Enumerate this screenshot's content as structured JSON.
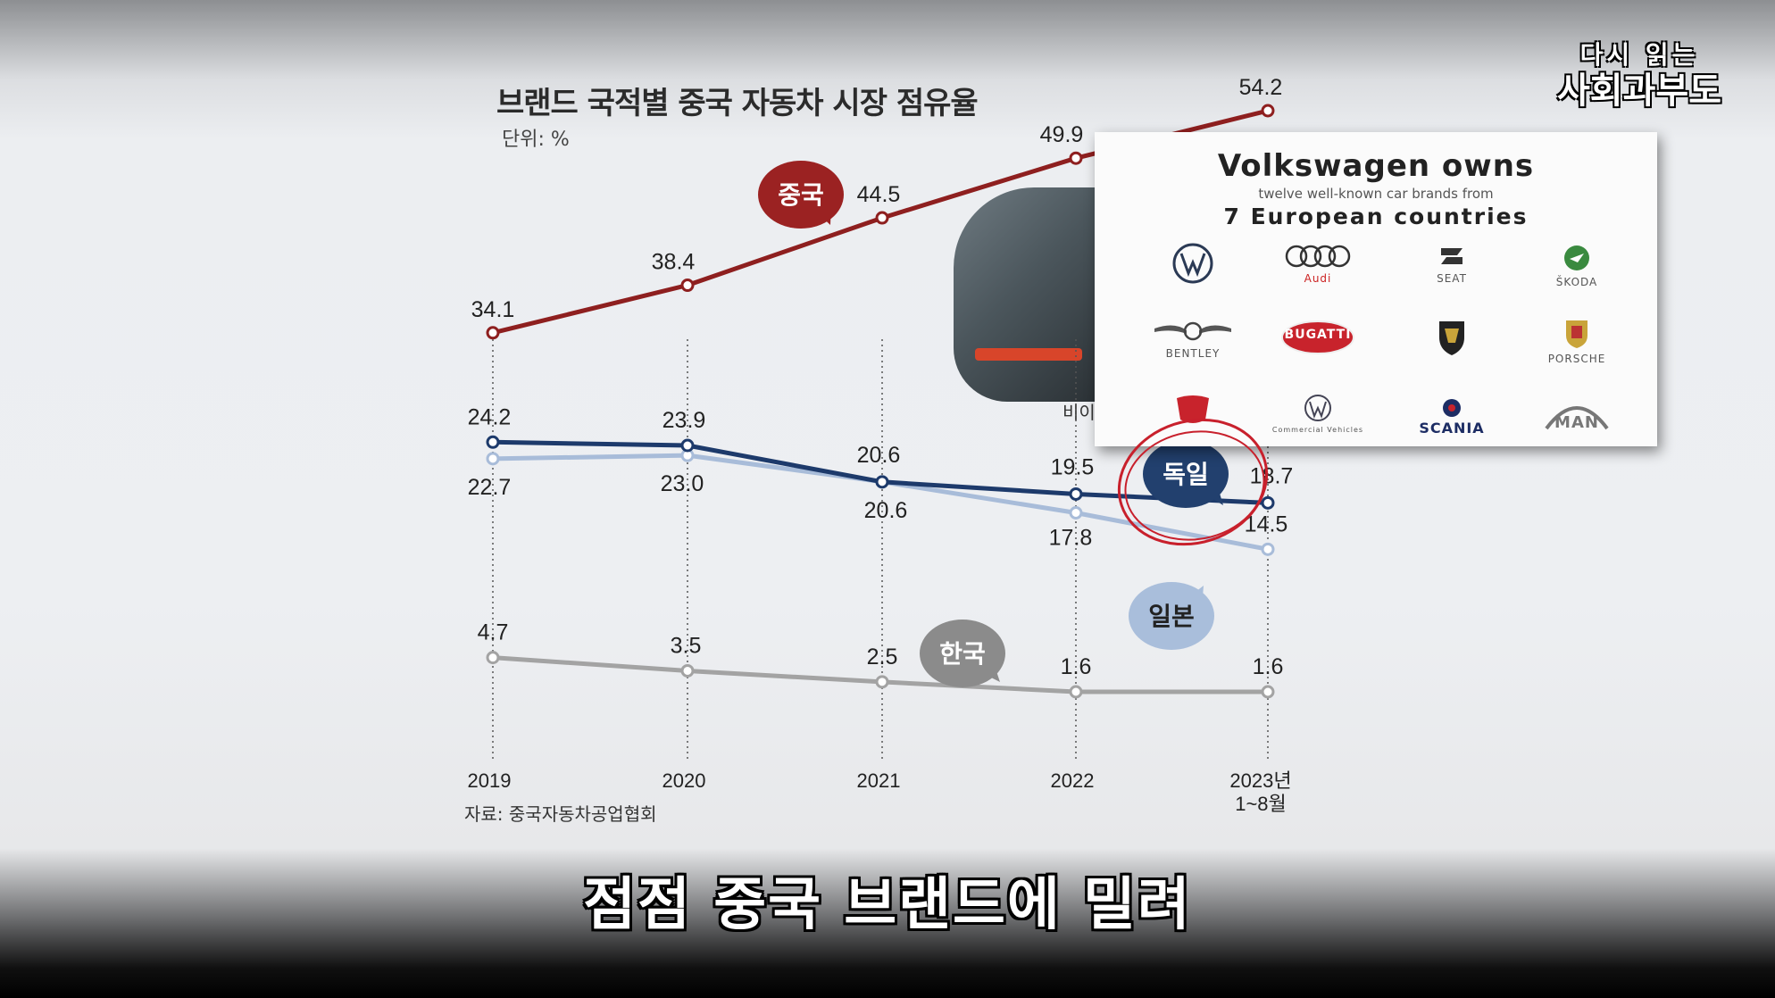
{
  "chart_data": {
    "type": "line",
    "title": "브랜드 국적별 중국 자동차 시장 점유율",
    "unit": "단위: %",
    "source": "자료: 중국자동차공업협회",
    "categories": [
      "2019",
      "2020",
      "2021",
      "2022",
      "2023년 1~8월"
    ],
    "series": [
      {
        "name": "중국",
        "values": [
          34.1,
          38.4,
          44.5,
          49.9,
          54.2
        ],
        "color": "#8e1f1f"
      },
      {
        "name": "독일",
        "values": [
          24.2,
          23.9,
          20.6,
          19.5,
          18.7
        ],
        "color": "#1d3a6b"
      },
      {
        "name": "일본",
        "values": [
          22.7,
          23.0,
          20.6,
          17.8,
          14.5
        ],
        "color": "#a8bcd9"
      },
      {
        "name": "한국",
        "values": [
          4.7,
          3.5,
          2.5,
          1.6,
          1.6
        ],
        "color": "#a3a3a3"
      }
    ],
    "labels": {
      "중국": [
        "34.1",
        "38.4",
        "44.5",
        "49.9",
        "54.2"
      ],
      "독일": [
        "24.2",
        "23.9",
        "20.6",
        "19.5",
        "18.7"
      ],
      "일본": [
        "22.7",
        "23.0",
        "20.6",
        "17.8",
        "14.5"
      ],
      "한국": [
        "4.7",
        "3.5",
        "2.5",
        "1.6",
        "1.6"
      ]
    },
    "x_tick_labels": [
      "2019",
      "2020",
      "2021",
      "2022",
      [
        "2023년",
        "1~8월"
      ]
    ]
  },
  "subtitle": "점점 중국 브랜드에 밀려",
  "channel_logo": {
    "line1": "다시 읽는",
    "line2": "사회과부도"
  },
  "car_caption": "비이",
  "volkswagen_card": {
    "title": "Volkswagen owns",
    "subtitle": "twelve well-known car brands from",
    "subtitle2": "7 European countries",
    "brands": [
      "",
      "Audi",
      "SEAT",
      "ŠKODA",
      "BENTLEY",
      "BUGATTI",
      "",
      "PORSCHE",
      "",
      "Commercial Vehicles",
      "SCANIA",
      "MAN"
    ]
  }
}
